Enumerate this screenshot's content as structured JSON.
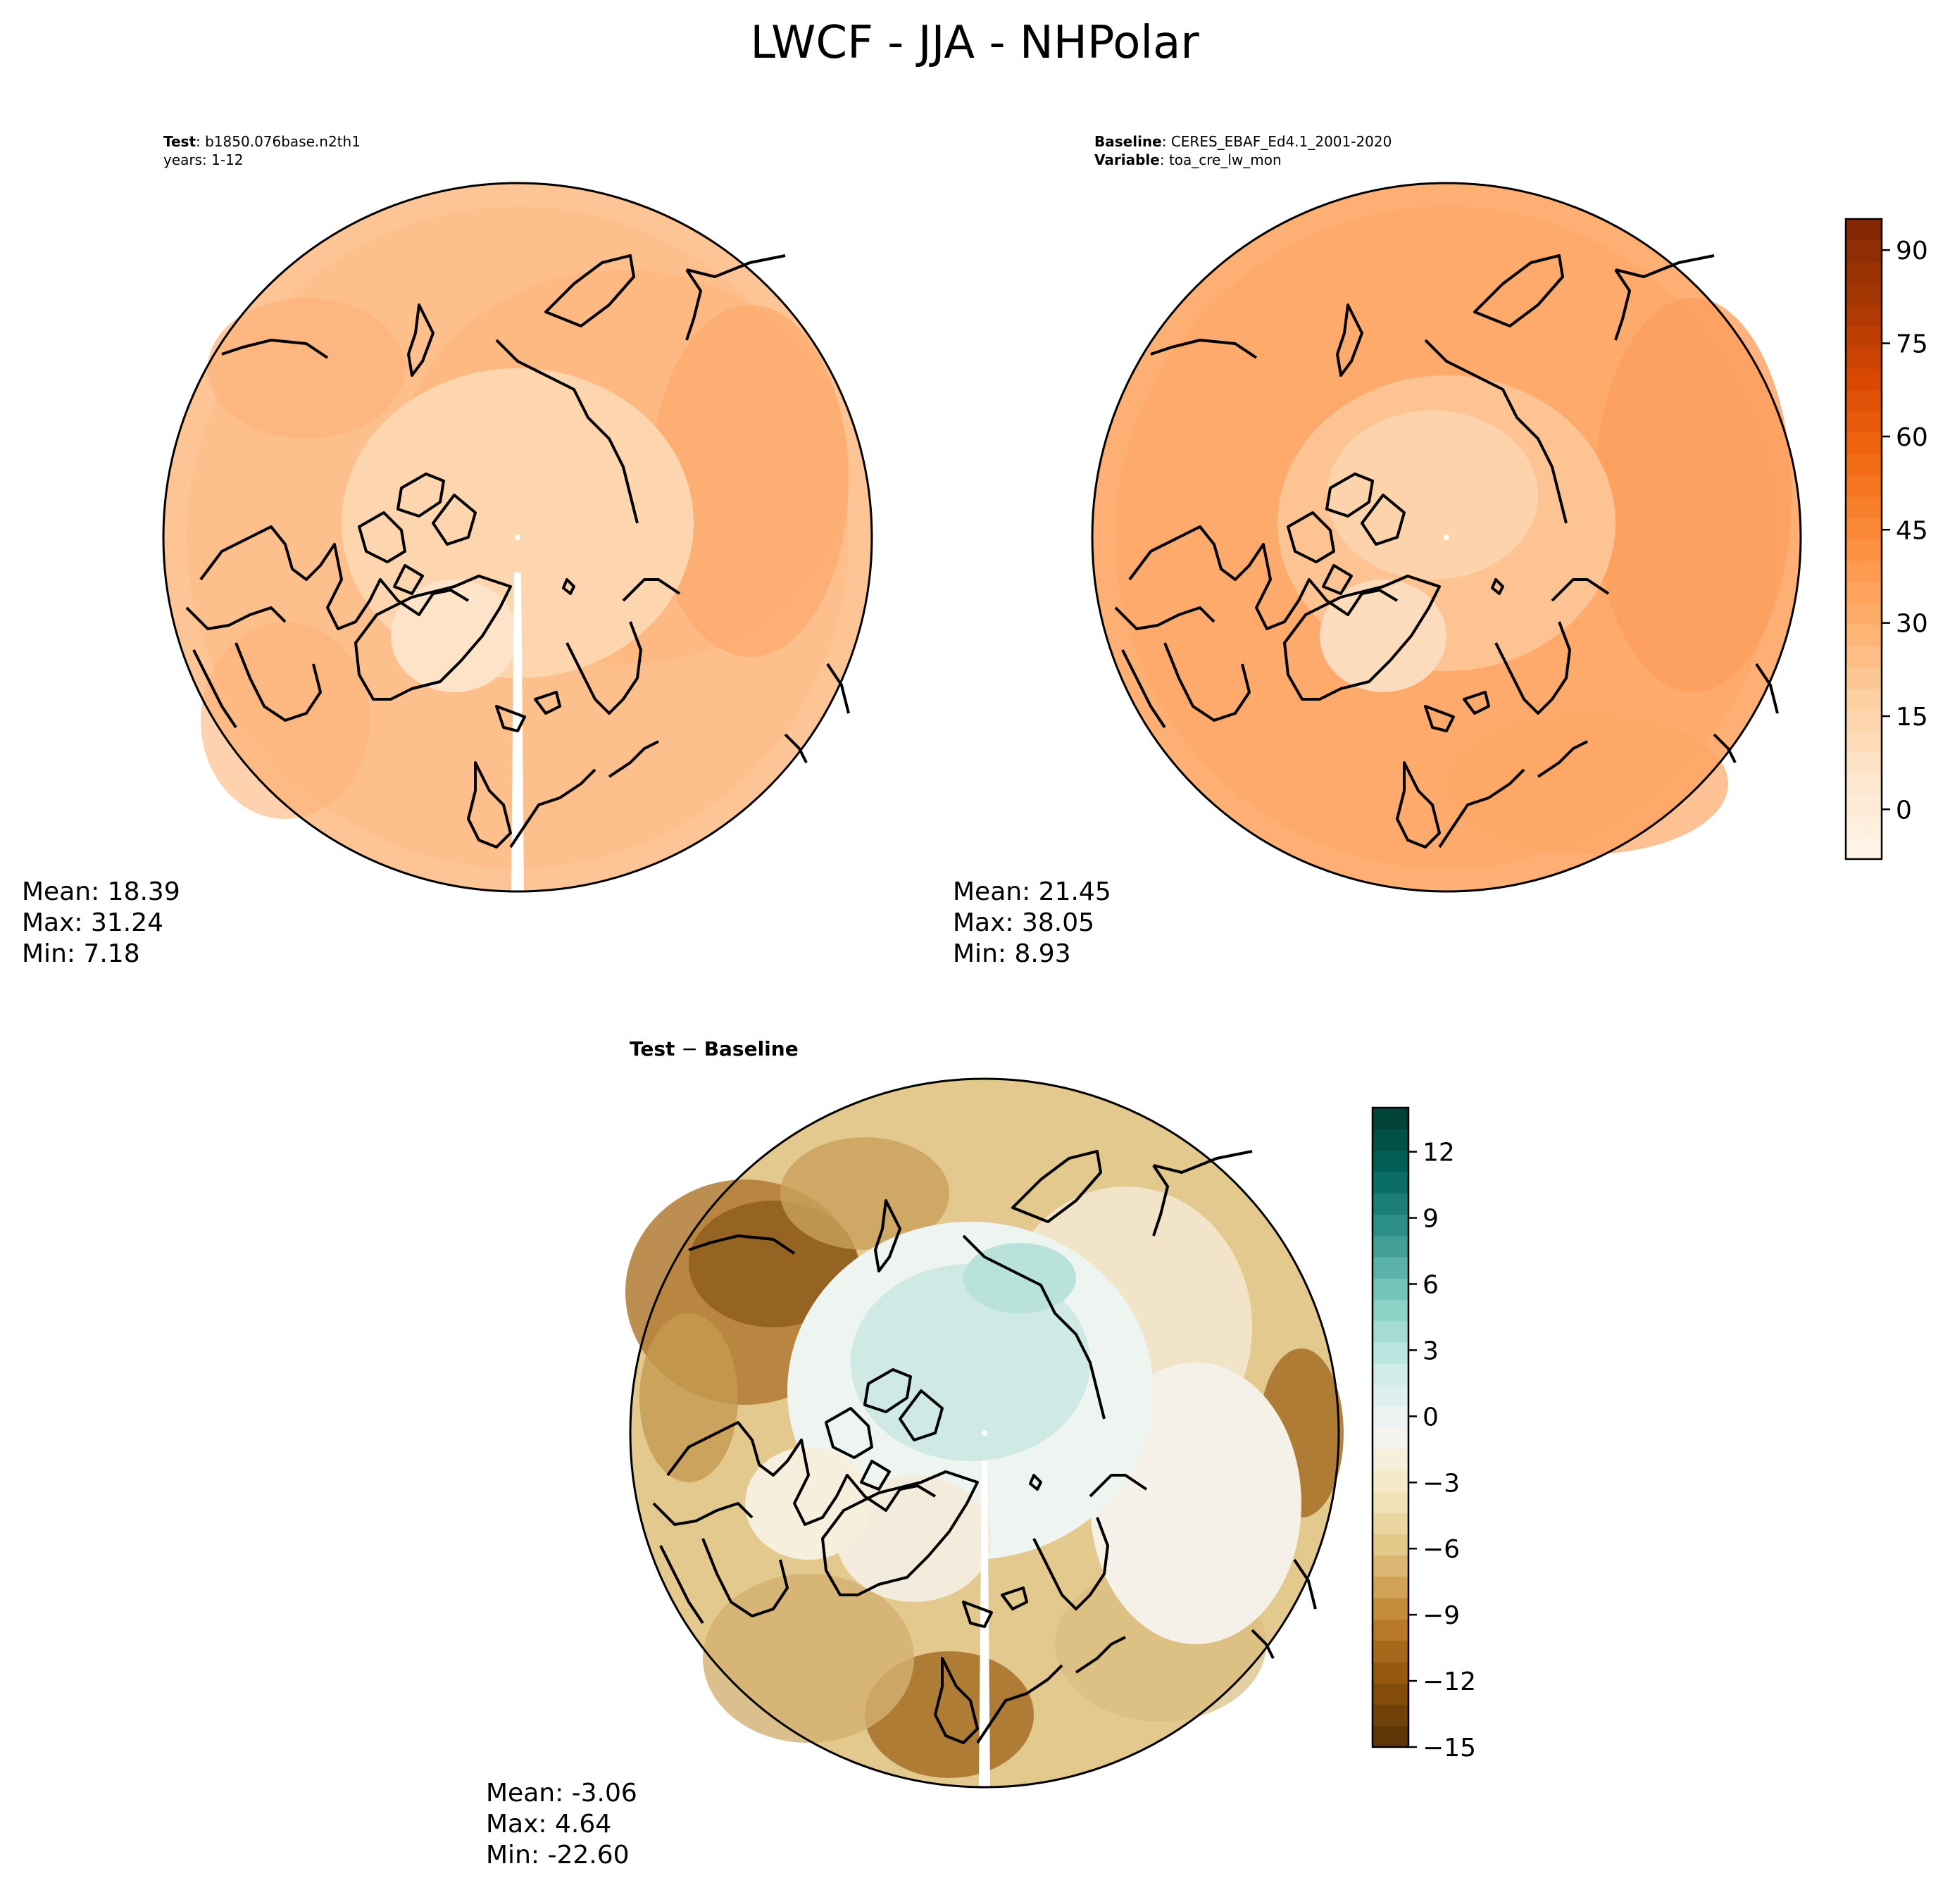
{
  "figure": {
    "title": "LWCF - JJA - NHPolar"
  },
  "panels": {
    "test": {
      "header_line1_key": "Test",
      "header_line1_value": ": b1850.076base.n2th1",
      "header_line2": "years: 1-12",
      "stats": {
        "mean": "Mean: 18.39",
        "max": "Max: 31.24",
        "min": "Min:  7.18"
      }
    },
    "baseline": {
      "header_line1_key": "Baseline",
      "header_line1_value": ": CERES_EBAF_Ed4.1_2001-2020",
      "header_line2_key": "Variable",
      "header_line2_value": ": toa_cre_lw_mon",
      "stats": {
        "mean": "Mean: 21.45",
        "max": "Max: 38.05",
        "min": "Min:  8.93"
      }
    },
    "diff": {
      "title_a": "Test",
      "title_op": " − ",
      "title_b": "Baseline",
      "stats": {
        "mean": "Mean: -3.06",
        "max": "Max:  4.64",
        "min": "Min: -22.60"
      }
    }
  },
  "colorbars": {
    "main": {
      "min": -8,
      "max": 95,
      "ticks": [
        "0",
        "15",
        "30",
        "45",
        "60",
        "75",
        "90"
      ],
      "tick_values": [
        0,
        15,
        30,
        45,
        60,
        75,
        90
      ],
      "colormap": "Oranges",
      "colors": [
        "#fff5eb",
        "#fee6ce",
        "#fdd0a2",
        "#fdae6b",
        "#fd8d3c",
        "#f16913",
        "#d94801",
        "#a63603",
        "#7f2704"
      ]
    },
    "diff": {
      "min": -15,
      "max": 14,
      "ticks": [
        "12",
        "9",
        "6",
        "3",
        "0",
        "−3",
        "−6",
        "−9",
        "−12",
        "−15"
      ],
      "tick_values": [
        12,
        9,
        6,
        3,
        0,
        -3,
        -6,
        -9,
        -12,
        -15
      ],
      "colormap": "BrBG",
      "colors": [
        "#543005",
        "#8c510a",
        "#bf812d",
        "#dfc27d",
        "#f6e8c3",
        "#f5f5f5",
        "#c7eae5",
        "#80cdc1",
        "#35978f",
        "#01665e",
        "#003c30"
      ]
    }
  }
}
